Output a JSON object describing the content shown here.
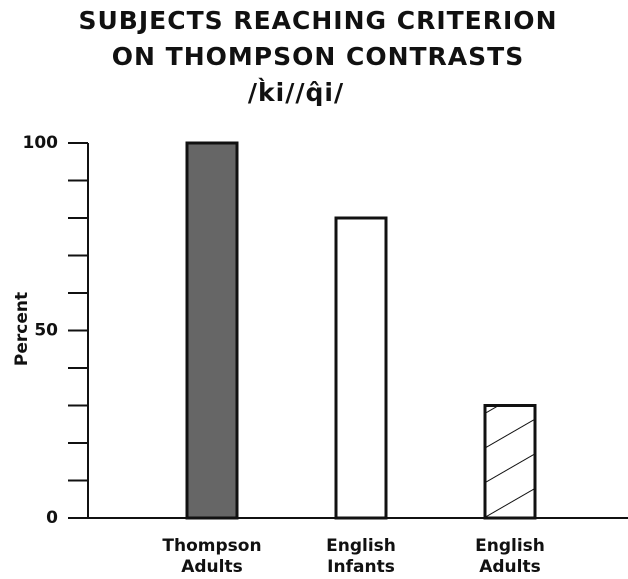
{
  "chart_data": {
    "type": "bar",
    "title": [
      "SUBJECTS REACHING CRITERION",
      "ON THOMPSON CONTRASTS",
      "/k̀i//q̂i/"
    ],
    "y_label": "Percent",
    "categories": [
      "Thompson Adults",
      "English Infants",
      "English Adults"
    ],
    "values": [
      100,
      80,
      30
    ],
    "colors": [
      "#666666",
      "#ffffff",
      "#ffffff"
    ],
    "hatch": [
      false,
      false,
      true
    ],
    "ylim": [
      0,
      100
    ],
    "yticks": [
      0,
      50,
      100
    ],
    "minor_yticks": [
      10,
      20,
      30,
      40,
      60,
      70,
      80,
      90
    ],
    "grid": false
  }
}
